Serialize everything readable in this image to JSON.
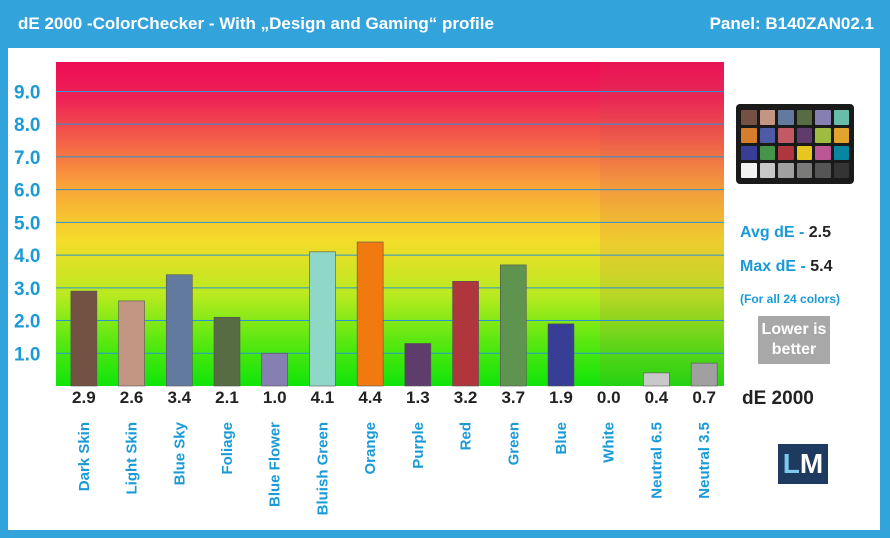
{
  "header": {
    "title": "dE 2000 -ColorChecker - With „Design and Gaming“ profile",
    "panel": "Panel: B140ZAN02.1"
  },
  "stats": {
    "avg_label": "Avg dE - ",
    "avg_value": "2.5",
    "max_label": "Max dE - ",
    "max_value": "5.4",
    "note": "(For all 24 colors)",
    "lower_line1": "Lower is",
    "lower_line2": "better",
    "unit": "dE 2000"
  },
  "logo": {
    "l": "L",
    "m": "M",
    "icon": "laptopmedia-logo"
  },
  "checker": {
    "icon": "colorchecker-chart-icon",
    "colors": [
      "#735244",
      "#c29682",
      "#627a9d",
      "#576c43",
      "#8580b1",
      "#67bdaa",
      "#d67e2c",
      "#505ba6",
      "#c15a63",
      "#5e3c6c",
      "#9dbc40",
      "#e0a32e",
      "#383d96",
      "#469449",
      "#af363c",
      "#e7c71f",
      "#bb5695",
      "#0885a1",
      "#f3f3f2",
      "#c8c8c8",
      "#a0a0a0",
      "#7a7a79",
      "#555555",
      "#343434"
    ]
  },
  "chart_data": {
    "type": "bar",
    "categories": [
      "Dark Skin",
      "Light Skin",
      "Blue Sky",
      "Foliage",
      "Blue Flower",
      "Bluish Green",
      "Orange",
      "Purple",
      "Red",
      "Green",
      "Blue",
      "White",
      "Neutral 6.5",
      "Neutral 3.5"
    ],
    "values": [
      2.9,
      2.6,
      3.4,
      2.1,
      1.0,
      4.1,
      4.4,
      1.3,
      3.2,
      3.7,
      1.9,
      0.0,
      0.4,
      0.7
    ],
    "value_labels": [
      "2.9",
      "2.6",
      "3.4",
      "2.1",
      "1.0",
      "4.1",
      "4.4",
      "1.3",
      "3.2",
      "3.7",
      "1.9",
      "0.0",
      "0.4",
      "0.7"
    ],
    "bar_colors": [
      "#735244",
      "#c29682",
      "#627a9d",
      "#576c43",
      "#8580b1",
      "#8fd8c8",
      "#f07a10",
      "#5e3c6c",
      "#af363c",
      "#5f9450",
      "#383d96",
      "#f3f3f2",
      "#c8c8c8",
      "#a0a0a0"
    ],
    "yticks": [
      1.0,
      2.0,
      3.0,
      4.0,
      5.0,
      6.0,
      7.0,
      8.0,
      9.0
    ],
    "ytick_labels": [
      "1.0",
      "2.0",
      "3.0",
      "4.0",
      "5.0",
      "6.0",
      "7.0",
      "8.0",
      "9.0"
    ],
    "ylim": [
      0,
      9.9
    ],
    "grid": true,
    "xlabel": "",
    "ylabel": "",
    "title": ""
  }
}
